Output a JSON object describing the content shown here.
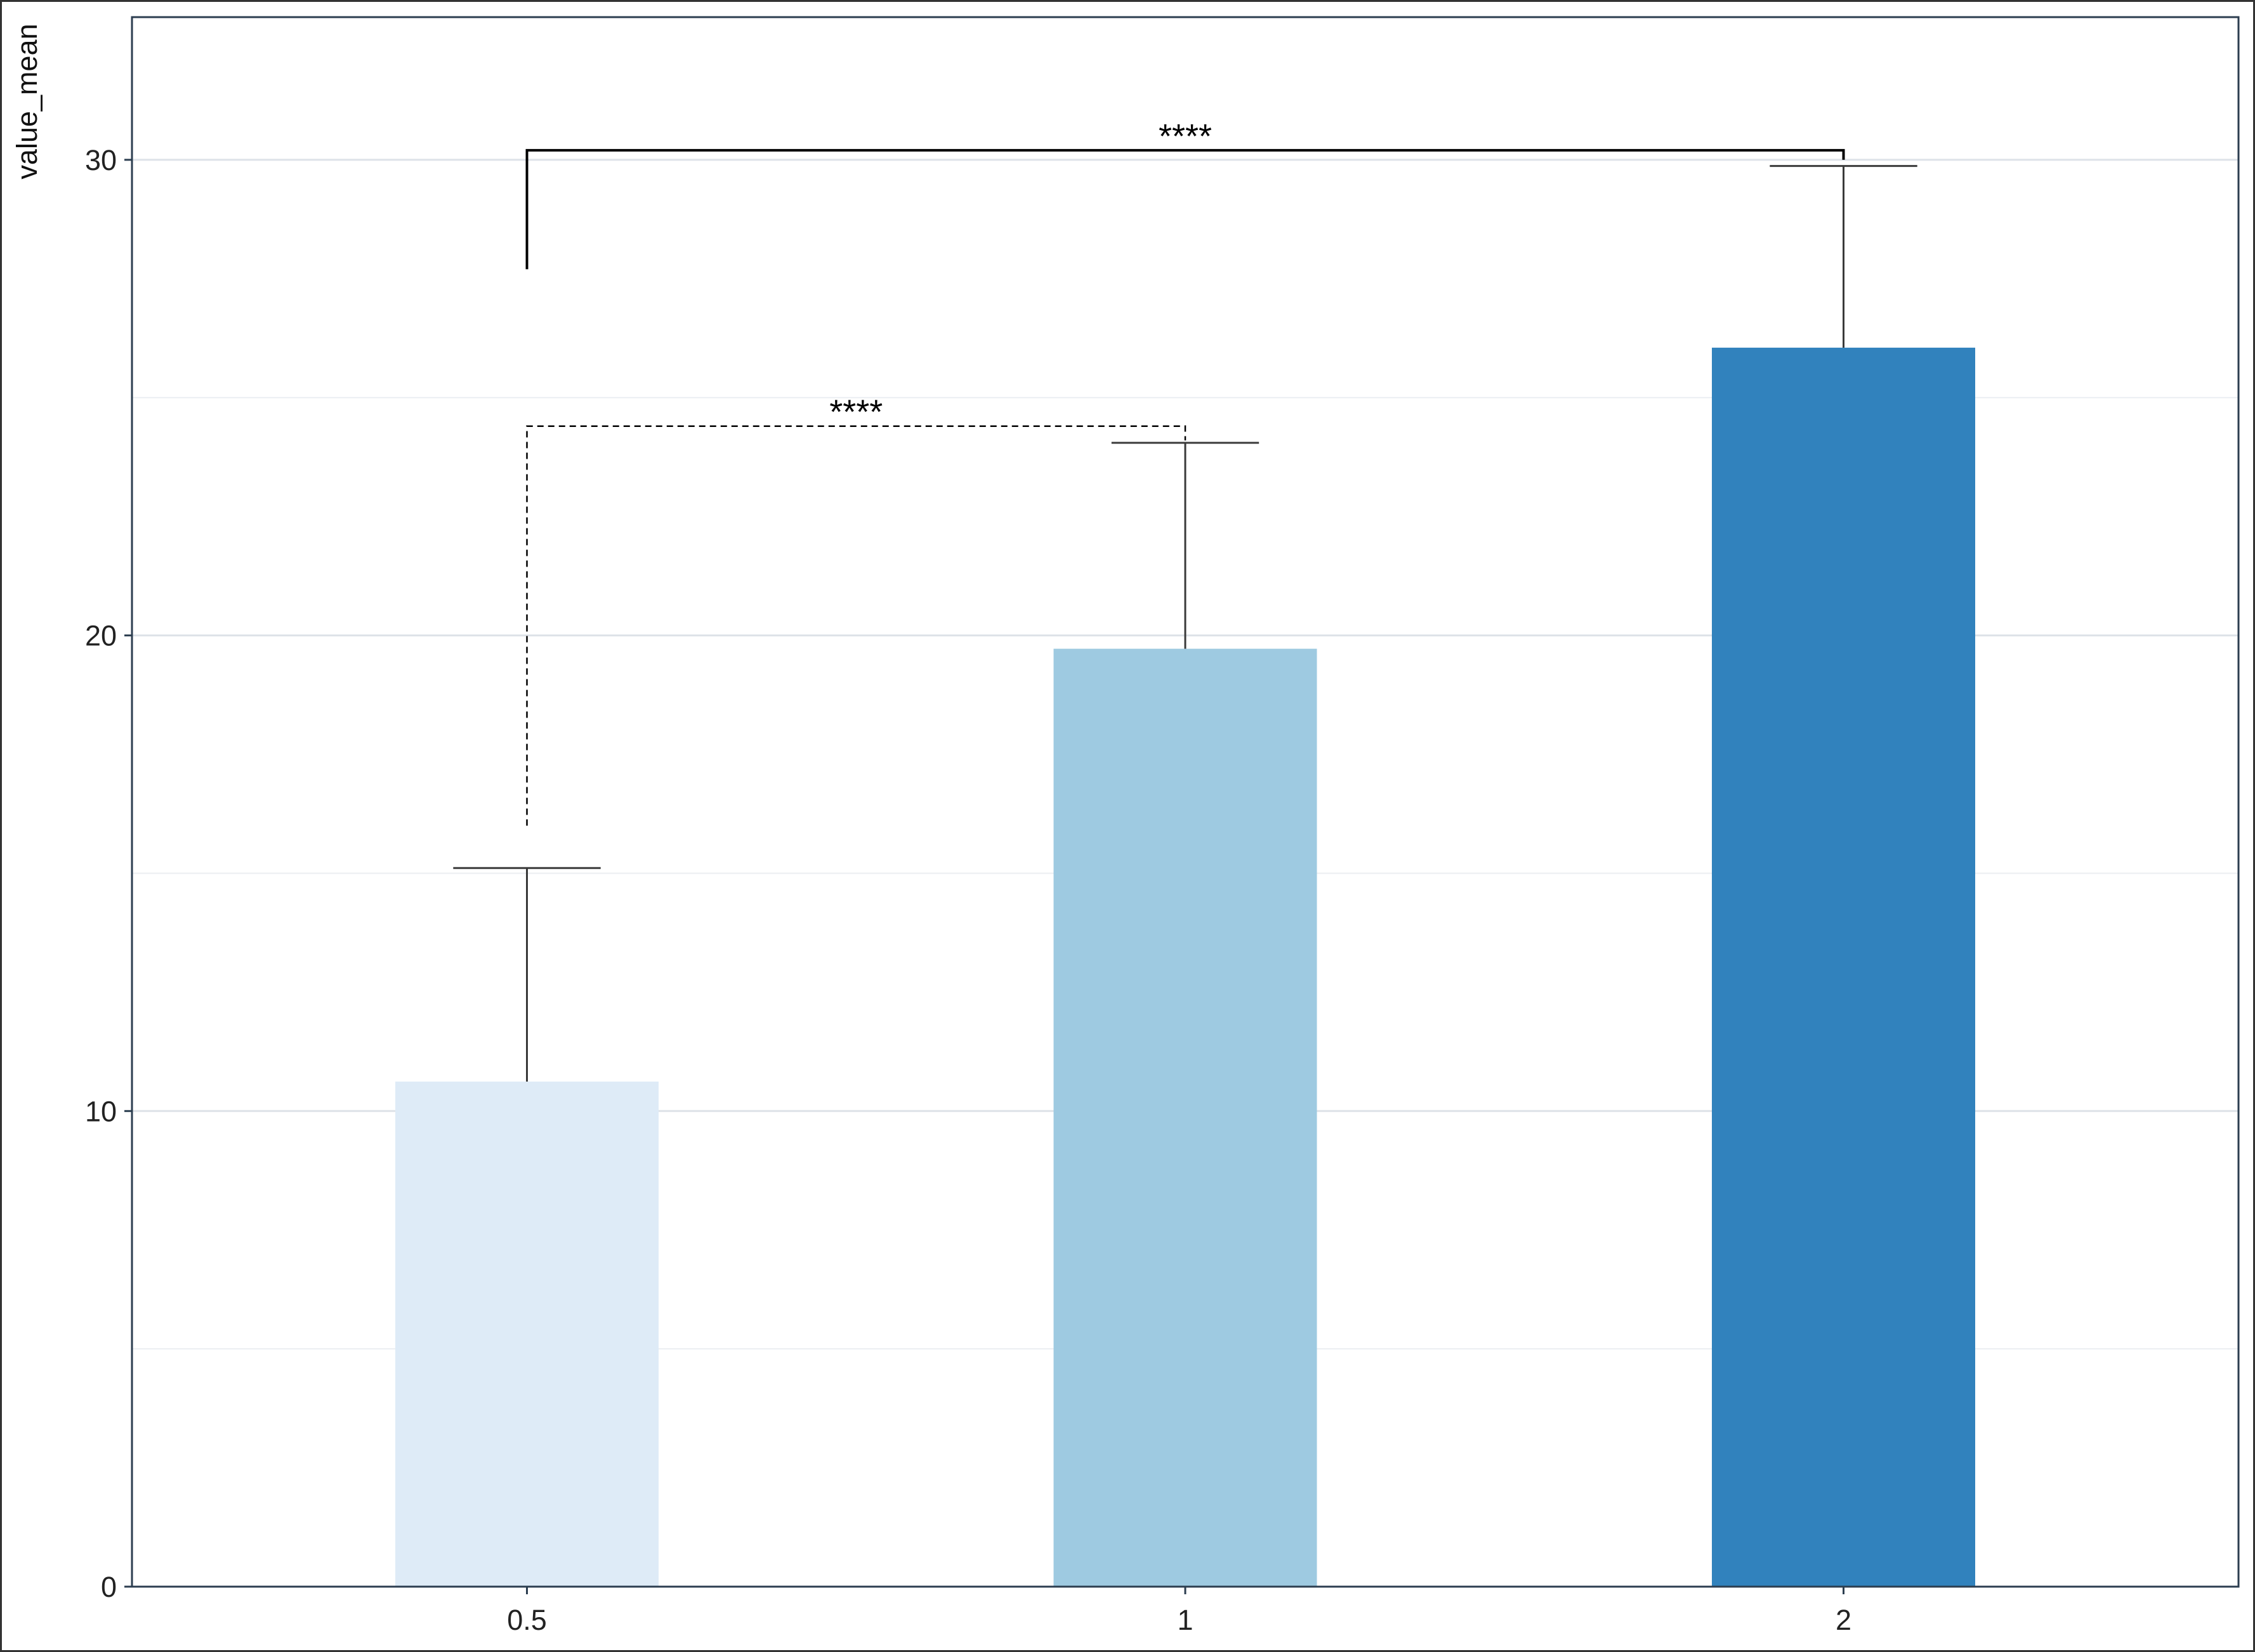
{
  "chart_data": {
    "type": "bar",
    "title": "",
    "xlabel": "",
    "ylabel": "value_mean",
    "categories": [
      "0.5",
      "1",
      "2"
    ],
    "values": [
      10.62,
      19.72,
      26.05
    ],
    "error_upper": [
      15.11,
      24.05,
      29.87
    ],
    "colors": [
      "#deebf7",
      "#9ecae1",
      "#3182bd"
    ],
    "ylim": [
      0,
      33.0
    ],
    "yticks": [
      0,
      10,
      20,
      30
    ],
    "yticks_labels": [
      "0",
      "10",
      "20",
      "30"
    ],
    "grid": true,
    "legend": "none",
    "comparisons": [
      {
        "from": "0.5",
        "to": "1",
        "label": "****",
        "bracket_y": 24.4,
        "left_tip_y": 16.0,
        "right_tip_y": 24.1,
        "style": "dashed"
      },
      {
        "from": "0.5",
        "to": "2",
        "label": "****",
        "bracket_y": 30.2,
        "left_tip_y": 27.7,
        "right_tip_y": 30.0,
        "style": "solid"
      }
    ]
  }
}
